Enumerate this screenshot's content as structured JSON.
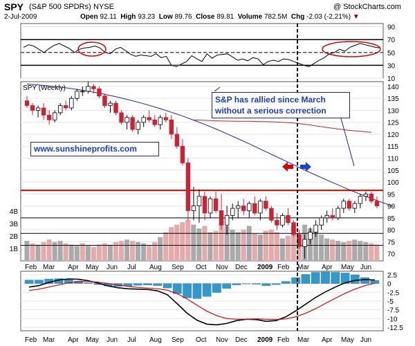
{
  "header": {
    "ticker": "SPY",
    "name": "(S&P 500 SPDRs)",
    "exchange": "NYSE",
    "date": "2-Jul-2009",
    "open_label": "Open",
    "open": "92.11",
    "high_label": "High",
    "high": "93.23",
    "low_label": "Low",
    "low": "89.76",
    "close_label": "Close",
    "close": "89.81",
    "volume_label": "Volume",
    "volume": "782.5M",
    "chg_label": "Chg",
    "chg": "-2.03 (-2.21%)",
    "watermark": "@ StockCharts.com"
  },
  "annotations": {
    "main_note": "S&P has rallied since March without a serious correction",
    "website": "www.sunshineprofits.com",
    "price_panel_label": "SPY (Weekly)"
  },
  "colors": {
    "up_candle": "#ffffff",
    "down_candle": "#cc2233",
    "long_ma": "#1a2a99",
    "short_ma": "#cc2222",
    "support_line": "#dd0000",
    "volume_up": "#aaaaaa",
    "volume_down": "#e7aaaa",
    "macd_hist": "#3399cc",
    "macd_line": "#000000",
    "signal_line": "#dd0000",
    "annotation_text": "#1a3cc8",
    "arrow_left": "#dd0000",
    "arrow_right": "#1a44cc"
  },
  "chart_data": [
    {
      "type": "line",
      "panel": "RSI",
      "y_ticks": [
        10,
        30,
        50,
        70,
        90
      ],
      "y_range": [
        10,
        95
      ],
      "reference_lines": [
        30,
        50,
        70
      ],
      "values": [
        58,
        62,
        60,
        55,
        50,
        56,
        61,
        64,
        60,
        56,
        50,
        55,
        57,
        58,
        60,
        57,
        50,
        48,
        55,
        58,
        53,
        47,
        44,
        46,
        45,
        44,
        48,
        42,
        44,
        30,
        28,
        32,
        36,
        45,
        40,
        36,
        48,
        41,
        46,
        47,
        48,
        43,
        38,
        40,
        37,
        42,
        40,
        31,
        36,
        38,
        36,
        40,
        39,
        36,
        33,
        30,
        28,
        33,
        38,
        42,
        48,
        50,
        55,
        52,
        58,
        61,
        64,
        62,
        60,
        58,
        57
      ]
    },
    {
      "type": "candlestick",
      "panel": "Price",
      "title": "SPY (Weekly)",
      "x_ticks": [
        "Feb",
        "Mar",
        "Apr",
        "May",
        "Jun",
        "Jul",
        "Aug",
        "Sep",
        "Oct",
        "Nov",
        "Dec",
        "2009",
        "Feb",
        "Mar",
        "Apr",
        "May",
        "Jun"
      ],
      "y_ticks": [
        70,
        75,
        80,
        85,
        90,
        95,
        100,
        105,
        110,
        115,
        120,
        125,
        130,
        135,
        140
      ],
      "y_range": [
        67,
        142
      ],
      "support_line": 96.5,
      "horizontal_lines": [
        85,
        78.5,
        73.5
      ],
      "volume_ticks": [
        "1B",
        "2B",
        "3B",
        "4B"
      ],
      "candles": [
        [
          134,
          136,
          131,
          132
        ],
        [
          132,
          133,
          128,
          130
        ],
        [
          130,
          132,
          127,
          131
        ],
        [
          131,
          133,
          126,
          128
        ],
        [
          128,
          130,
          124,
          126
        ],
        [
          126,
          130,
          125,
          129
        ],
        [
          129,
          133,
          128,
          132
        ],
        [
          132,
          134,
          130,
          131
        ],
        [
          131,
          136,
          130,
          135
        ],
        [
          135,
          139,
          134,
          138
        ],
        [
          138,
          140,
          136,
          138
        ],
        [
          138,
          142,
          137,
          140
        ],
        [
          140,
          141,
          137,
          139
        ],
        [
          139,
          140,
          135,
          136
        ],
        [
          136,
          137,
          131,
          132
        ],
        [
          132,
          134,
          129,
          133
        ],
        [
          133,
          134,
          128,
          129
        ],
        [
          129,
          130,
          124,
          125
        ],
        [
          125,
          128,
          122,
          127
        ],
        [
          127,
          128,
          121,
          122
        ],
        [
          122,
          126,
          120,
          125
        ],
        [
          125,
          128,
          123,
          127
        ],
        [
          127,
          130,
          125,
          126
        ],
        [
          126,
          128,
          123,
          124
        ],
        [
          124,
          128,
          122,
          127
        ],
        [
          127,
          129,
          125,
          126
        ],
        [
          126,
          128,
          118,
          120
        ],
        [
          120,
          123,
          114,
          115
        ],
        [
          115,
          118,
          107,
          108
        ],
        [
          108,
          110,
          84,
          88
        ],
        [
          88,
          98,
          84,
          90
        ],
        [
          90,
          97,
          83,
          94
        ],
        [
          94,
          96,
          84,
          87
        ],
        [
          87,
          94,
          85,
          93
        ],
        [
          93,
          96,
          87,
          88
        ],
        [
          88,
          95,
          80,
          82
        ],
        [
          82,
          90,
          78,
          86
        ],
        [
          86,
          91,
          84,
          89
        ],
        [
          89,
          92,
          85,
          90
        ],
        [
          90,
          93,
          86,
          88
        ],
        [
          88,
          92,
          85,
          91
        ],
        [
          91,
          94,
          86,
          87
        ],
        [
          87,
          93,
          84,
          92
        ],
        [
          92,
          94,
          88,
          89
        ],
        [
          89,
          90,
          83,
          84
        ],
        [
          84,
          87,
          80,
          82
        ],
        [
          82,
          87,
          81,
          86
        ],
        [
          86,
          89,
          82,
          83
        ],
        [
          83,
          84,
          77,
          78
        ],
        [
          78,
          80,
          72,
          73
        ],
        [
          73,
          78,
          68,
          76
        ],
        [
          76,
          81,
          74,
          79
        ],
        [
          79,
          84,
          77,
          82
        ],
        [
          82,
          86,
          80,
          85
        ],
        [
          85,
          88,
          83,
          86
        ],
        [
          86,
          89,
          84,
          85
        ],
        [
          85,
          90,
          84,
          89
        ],
        [
          89,
          93,
          87,
          92
        ],
        [
          92,
          93,
          88,
          89
        ],
        [
          89,
          92,
          87,
          91
        ],
        [
          91,
          95,
          89,
          94
        ],
        [
          94,
          96,
          92,
          95
        ],
        [
          95,
          96,
          91,
          92
        ],
        [
          92,
          94,
          89,
          90
        ]
      ],
      "long_ma": [
        141,
        140.6,
        140.2,
        139.7,
        139.1,
        138.4,
        137.6,
        136.7,
        135.7,
        134.6,
        133.4,
        132.1,
        130.7,
        129.2,
        127.6,
        125.9,
        124.1,
        122.2,
        120.2,
        118.1,
        116,
        113.8,
        111.6,
        109.4,
        107.2,
        105,
        102.9,
        100.8,
        98.8,
        96.8,
        94.9,
        93.1,
        91.4,
        89.8
      ],
      "short_ma": [
        126,
        125.8,
        125.6,
        125.5,
        125.4,
        125.4,
        125.3,
        125.2,
        125,
        124.7,
        124.2,
        123.5,
        122.8,
        122.2,
        121.6,
        121.2,
        120.8
      ]
    },
    {
      "type": "bar",
      "panel": "Volume",
      "values": [
        1.6,
        1.4,
        1.3,
        1.5,
        1.7,
        1.5,
        1.6,
        1.4,
        1.3,
        1.2,
        1.4,
        1.2,
        1.1,
        1.3,
        1.4,
        1.3,
        1.5,
        1.6,
        1.7,
        1.6,
        1.5,
        1.4,
        1.2,
        1.5,
        1.9,
        2.3,
        2.7,
        2.9,
        3.1,
        3.3,
        2.9,
        2.6,
        2.8,
        2.3,
        2.4,
        3.2,
        2.8,
        2.5,
        2.3,
        2.5,
        2.8,
        2.2,
        2.1,
        2.4,
        2.5,
        2.3,
        1.8,
        2.0,
        2.8,
        2.2,
        2.9,
        2.6,
        2.4,
        2.1,
        1.8,
        1.7,
        1.6,
        1.5,
        1.6,
        1.7,
        1.6,
        1.5,
        1.4,
        1.3
      ],
      "up": [
        true,
        false,
        true,
        false,
        false,
        true,
        true,
        false,
        true,
        true,
        false,
        true,
        false,
        false,
        false,
        true,
        false,
        false,
        true,
        false,
        true,
        true,
        false,
        false,
        true,
        false,
        false,
        false,
        false,
        false,
        true,
        true,
        false,
        true,
        false,
        false,
        true,
        true,
        true,
        false,
        true,
        false,
        true,
        false,
        false,
        false,
        true,
        false,
        false,
        false,
        true,
        true,
        true,
        true,
        true,
        false,
        true,
        true,
        false,
        true,
        true,
        true,
        false,
        false
      ]
    },
    {
      "type": "line",
      "panel": "MACD",
      "y_ticks": [
        2.5,
        0,
        -2.5,
        -5,
        -7.5,
        -10,
        -12.5
      ],
      "y_range": [
        -13.5,
        3.5
      ],
      "x_ticks": [
        "Feb",
        "Mar",
        "Apr",
        "May",
        "Jun",
        "Jul",
        "Aug",
        "Sep",
        "Oct",
        "Nov",
        "Dec",
        "2009",
        "Feb",
        "Mar",
        "Apr",
        "May",
        "Jun"
      ],
      "series": [
        {
          "values": [
            -1,
            -0.6,
            0.3,
            1.0,
            1.3,
            1.2,
            0.8,
            0.1,
            -0.7,
            -1.2,
            -1.5,
            -1.6,
            -1.7,
            -2.1,
            -3.2,
            -5.8,
            -8.5,
            -10.5,
            -11.6,
            -11.8,
            -11.4,
            -10.6,
            -10.2,
            -10.3,
            -10.8,
            -10.6,
            -9.5,
            -7.8,
            -5.9,
            -4.0,
            -2.4,
            -1.0,
            0.2,
            0.9,
            1.1,
            1.0
          ]
        },
        {
          "values": [
            -2.0,
            -1.6,
            -1.0,
            -0.4,
            0.2,
            0.5,
            0.6,
            0.4,
            0.0,
            -0.4,
            -0.8,
            -1.1,
            -1.3,
            -1.5,
            -1.9,
            -2.9,
            -4.4,
            -6.2,
            -7.9,
            -9.2,
            -10.0,
            -10.2,
            -10.2,
            -10.1,
            -10.2,
            -10.3,
            -10.1,
            -9.5,
            -8.5,
            -7.2,
            -5.7,
            -4.2,
            -2.8,
            -1.6,
            -0.6,
            0.1
          ]
        }
      ],
      "histogram": [
        1.0,
        1.0,
        1.3,
        1.4,
        1.1,
        0.7,
        0.2,
        -0.3,
        -0.7,
        -0.8,
        -0.7,
        -0.5,
        -0.4,
        -0.6,
        -1.3,
        -2.9,
        -4.1,
        -4.3,
        -3.7,
        -2.6,
        -1.4,
        -0.4,
        0.0,
        -0.2,
        -0.6,
        -0.3,
        0.6,
        1.7,
        2.6,
        3.2,
        3.3,
        3.2,
        3.0,
        2.5,
        1.7,
        0.9
      ]
    }
  ]
}
